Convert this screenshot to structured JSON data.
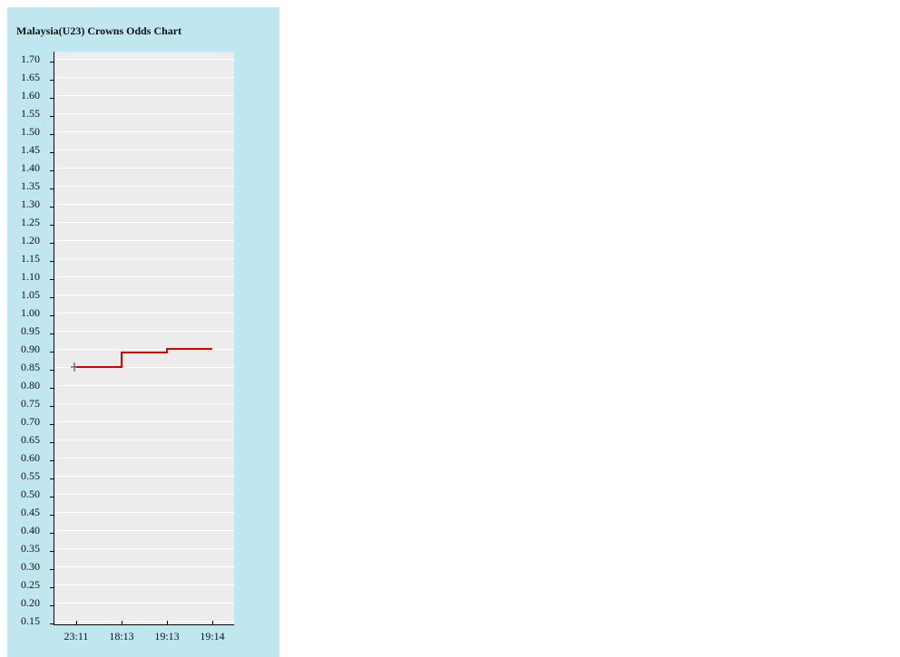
{
  "chart_data": {
    "type": "line",
    "title": "Malaysia(U23) Crowns Odds Chart",
    "xlabel": "",
    "ylabel": "",
    "categories": [
      "23:11",
      "18:13",
      "19:13",
      "19:14"
    ],
    "series": [
      {
        "color": "#dd0000",
        "values": [
          0.85,
          0.89,
          0.9,
          0.9
        ],
        "step": true
      }
    ],
    "y_ticks": [
      "1.70",
      "1.65",
      "1.60",
      "1.55",
      "1.50",
      "1.45",
      "1.40",
      "1.35",
      "1.30",
      "1.25",
      "1.20",
      "1.15",
      "1.10",
      "1.05",
      "1.00",
      "0.95",
      "0.90",
      "0.85",
      "0.80",
      "0.75",
      "0.70",
      "0.65",
      "0.60",
      "0.55",
      "0.50",
      "0.45",
      "0.40",
      "0.35",
      "0.30",
      "0.25",
      "0.20",
      "0.15"
    ],
    "ylim": [
      0.15,
      1.7
    ],
    "start_marker_value": 0.85,
    "grid": true,
    "colors": {
      "panel": "#c0e6f0",
      "plot": "#ececec",
      "grid": "#ffffff",
      "line": "#dd0000"
    }
  }
}
